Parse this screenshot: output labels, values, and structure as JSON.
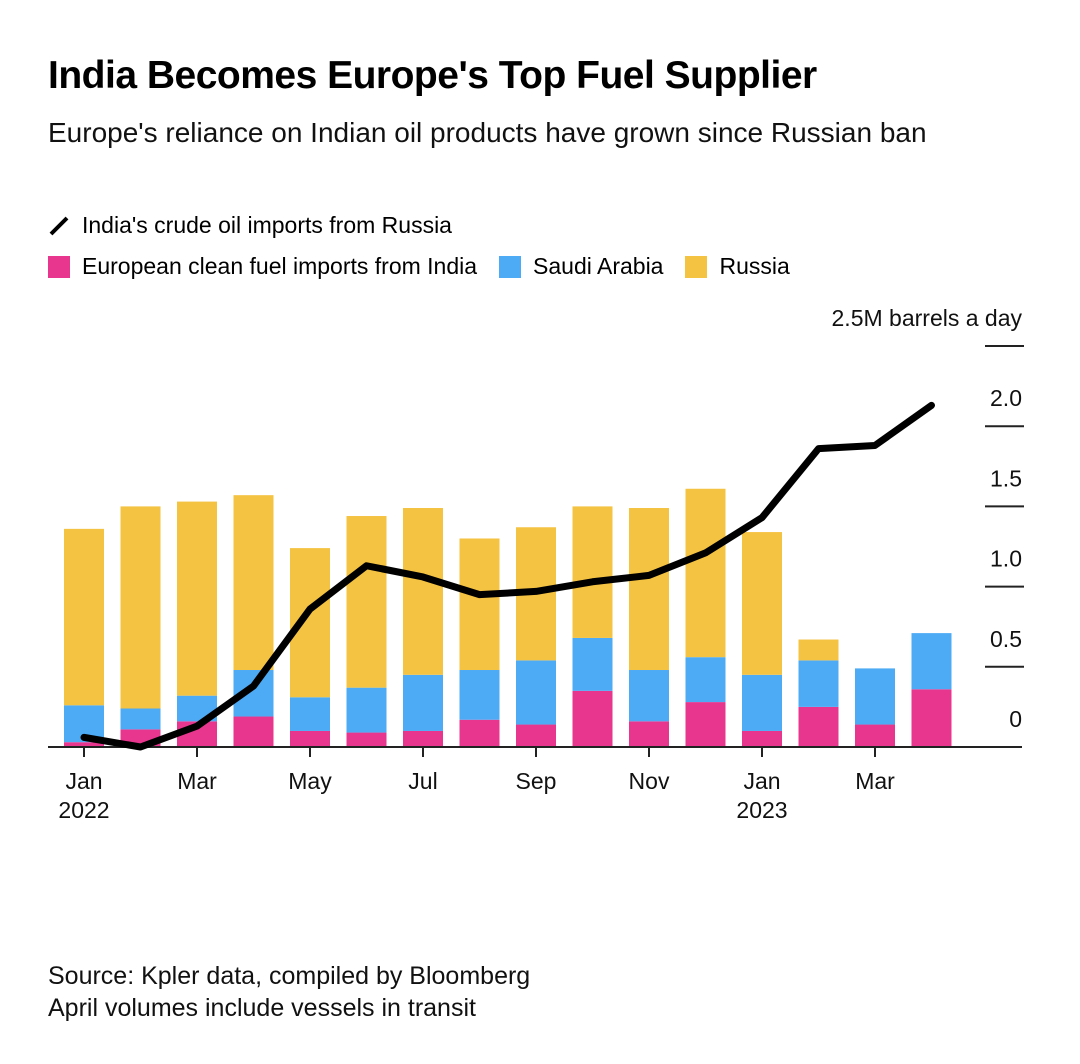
{
  "title": "India Becomes Europe's Top Fuel Supplier",
  "subtitle": "Europe's reliance on Indian oil products have grown since Russian ban",
  "source_lines": [
    "Source: Kpler data, compiled by Bloomberg",
    "April volumes include vessels in transit"
  ],
  "colors": {
    "india": "#e8368f",
    "saudi": "#4dabf5",
    "russia": "#f5c342",
    "line": "#000000"
  },
  "chart_data": {
    "type": "bar",
    "stacked": true,
    "unit_label": "2.5M barrels a day",
    "ylim": [
      0,
      2.5
    ],
    "yticks": [
      0,
      0.5,
      1.0,
      1.5,
      2.0,
      2.5
    ],
    "ytick_labels": [
      "0",
      "0.5",
      "1.0",
      "1.5",
      "2.0",
      ""
    ],
    "categories": [
      "Jan 2022",
      "Feb 2022",
      "Mar 2022",
      "Apr 2022",
      "May 2022",
      "Jun 2022",
      "Jul 2022",
      "Aug 2022",
      "Sep 2022",
      "Oct 2022",
      "Nov 2022",
      "Dec 2022",
      "Jan 2023",
      "Feb 2023",
      "Mar 2023",
      "Apr 2023"
    ],
    "xtick_labels": [
      {
        "index": 0,
        "month": "Jan",
        "year": "2022"
      },
      {
        "index": 2,
        "month": "Mar",
        "year": ""
      },
      {
        "index": 4,
        "month": "May",
        "year": ""
      },
      {
        "index": 6,
        "month": "Jul",
        "year": ""
      },
      {
        "index": 8,
        "month": "Sep",
        "year": ""
      },
      {
        "index": 10,
        "month": "Nov",
        "year": ""
      },
      {
        "index": 12,
        "month": "Jan",
        "year": "2023"
      },
      {
        "index": 14,
        "month": "Mar",
        "year": ""
      }
    ],
    "series": [
      {
        "name": "European clean fuel imports from India",
        "key": "india",
        "values": [
          0.03,
          0.11,
          0.16,
          0.19,
          0.1,
          0.09,
          0.1,
          0.17,
          0.14,
          0.35,
          0.16,
          0.28,
          0.1,
          0.25,
          0.14,
          0.36
        ]
      },
      {
        "name": "Saudi Arabia",
        "key": "saudi",
        "values": [
          0.23,
          0.13,
          0.16,
          0.29,
          0.21,
          0.28,
          0.35,
          0.31,
          0.4,
          0.33,
          0.32,
          0.28,
          0.35,
          0.29,
          0.35,
          0.35
        ]
      },
      {
        "name": "Russia",
        "key": "russia",
        "values": [
          1.1,
          1.26,
          1.21,
          1.09,
          0.93,
          1.07,
          1.04,
          0.82,
          0.83,
          0.82,
          1.01,
          1.05,
          0.89,
          0.13,
          0,
          0
        ]
      }
    ],
    "line_series": {
      "name": "India's crude oil imports from Russia",
      "values": [
        0.06,
        0.0,
        0.13,
        0.38,
        0.86,
        1.13,
        1.06,
        0.95,
        0.97,
        1.03,
        1.07,
        1.21,
        1.43,
        1.86,
        1.88,
        2.13
      ]
    }
  }
}
